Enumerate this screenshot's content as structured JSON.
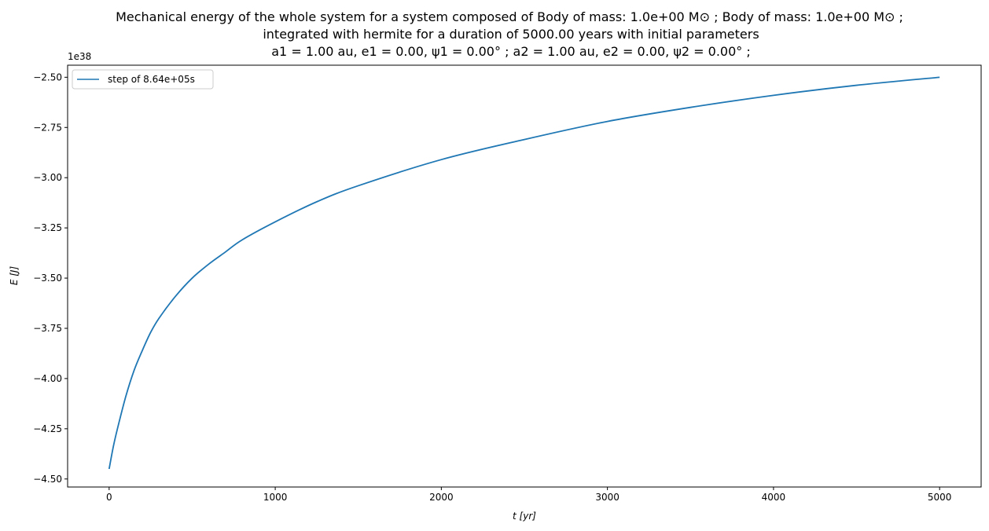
{
  "colors": {
    "series": "#1f77b4",
    "axes": "#000000",
    "legend_border": "#cccccc"
  },
  "chart_data": {
    "type": "line",
    "title_lines": [
      "Mechanical energy of the whole system for a system composed of Body of mass: 1.0e+00 M⊙ ; Body of mass: 1.0e+00 M⊙ ;",
      "integrated with hermite for a duration of 5000.00 years with initial parameters",
      "a1 = 1.00 au, e1 = 0.00, ψ1 = 0.00° ; a2 = 1.00 au, e2 = 0.00, ψ2 = 0.00° ;"
    ],
    "xlabel": "t [yr]",
    "ylabel": "E [J]",
    "y_offset_label": "1e38",
    "xlim": [
      -250,
      5250
    ],
    "ylim": [
      -4.54,
      -2.44
    ],
    "xticks": [
      0,
      1000,
      2000,
      3000,
      4000,
      5000
    ],
    "xtick_labels": [
      "0",
      "1000",
      "2000",
      "3000",
      "4000",
      "5000"
    ],
    "yticks": [
      -4.5,
      -4.25,
      -4.0,
      -3.75,
      -3.5,
      -3.25,
      -3.0,
      -2.75,
      -2.5
    ],
    "ytick_labels": [
      "−4.50",
      "−4.25",
      "−4.00",
      "−3.75",
      "−3.50",
      "−3.25",
      "−3.00",
      "−2.75",
      "−2.50"
    ],
    "grid": false,
    "legend_position": "upper-left",
    "series": [
      {
        "name": "step of 8.64e+05s",
        "x": [
          0,
          25,
          50,
          100,
          150,
          200,
          250,
          300,
          400,
          500,
          600,
          700,
          800,
          1000,
          1250,
          1500,
          2000,
          2500,
          3000,
          3500,
          4000,
          4500,
          5000
        ],
        "y": [
          -4.45,
          -4.34,
          -4.25,
          -4.09,
          -3.96,
          -3.86,
          -3.77,
          -3.7,
          -3.59,
          -3.5,
          -3.43,
          -3.37,
          -3.31,
          -3.22,
          -3.12,
          -3.04,
          -2.91,
          -2.81,
          -2.72,
          -2.65,
          -2.59,
          -2.54,
          -2.5
        ]
      }
    ]
  }
}
